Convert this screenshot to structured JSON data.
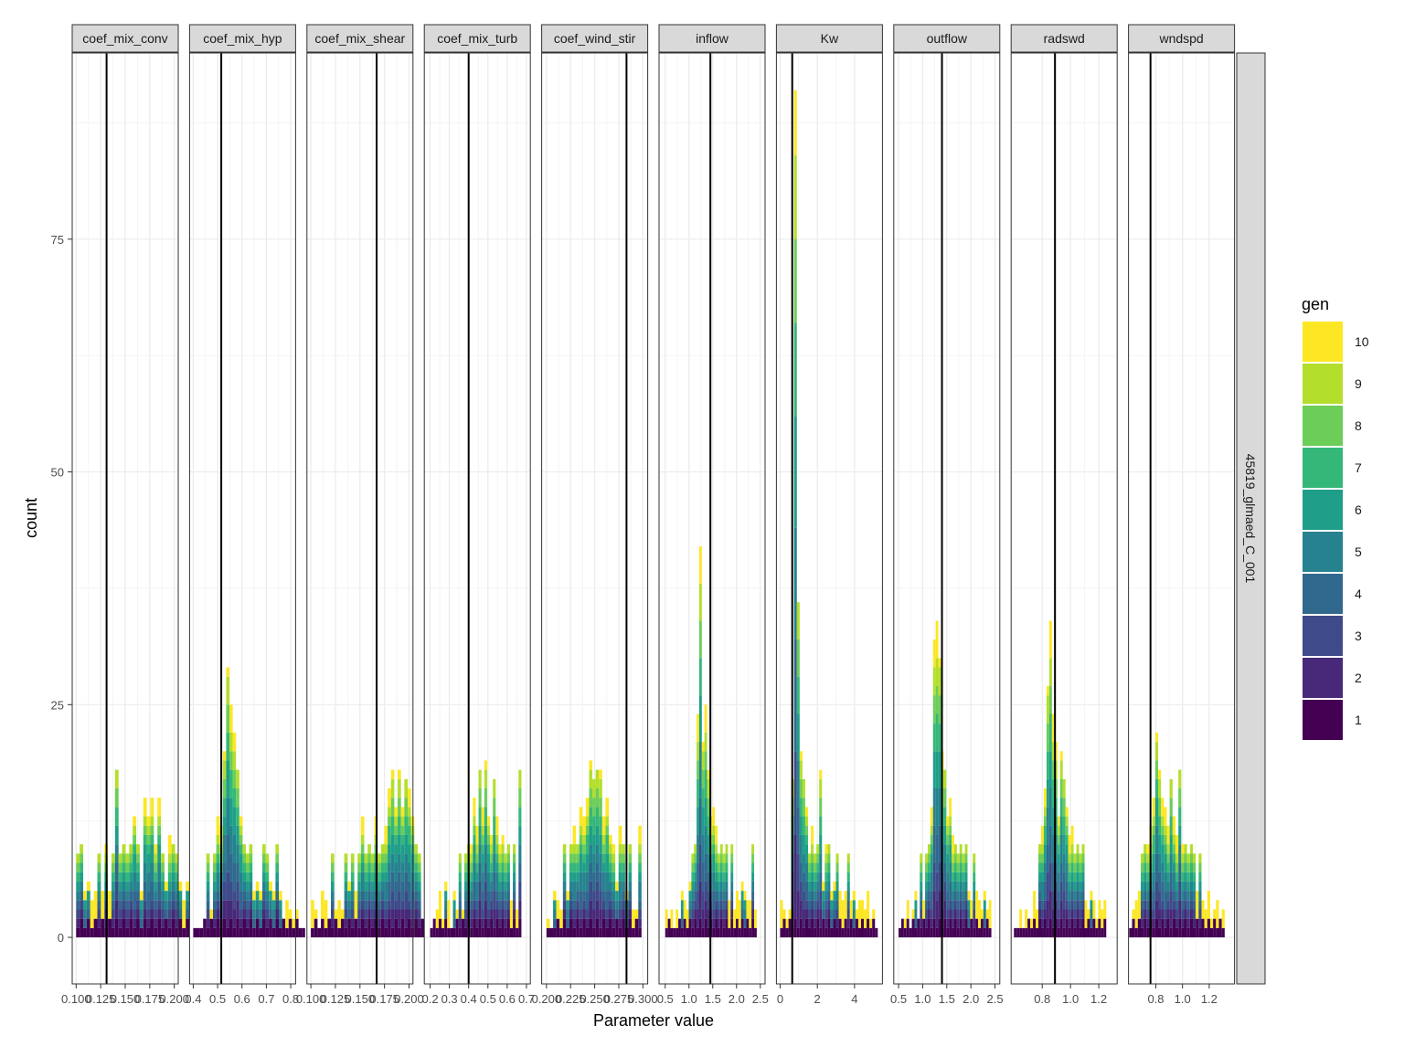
{
  "chart_data": {
    "type": "bar",
    "subtype": "stacked-histogram-facets",
    "xlabel": "Parameter value",
    "ylabel": "count",
    "ylim": [
      -5,
      95
    ],
    "y_ticks": [
      0,
      25,
      50,
      75
    ],
    "row_strip": "45819_glmaed_C_001",
    "legend": {
      "title": "gen",
      "placement": "right",
      "entries": [
        "10",
        "9",
        "8",
        "7",
        "6",
        "5",
        "4",
        "3",
        "2",
        "1"
      ],
      "colors": [
        "#FDE725",
        "#B4DE2C",
        "#6DCD59",
        "#35B779",
        "#1F9E89",
        "#26828E",
        "#31688E",
        "#3E4A89",
        "#482878",
        "#440154"
      ]
    },
    "facets": [
      {
        "name": "coef_mix_conv",
        "xlim": [
          0.096,
          0.204
        ],
        "ticks": [
          0.1,
          0.125,
          0.15,
          0.175,
          0.2
        ],
        "tick_labels": [
          "0.100",
          "0.125",
          "0.150",
          "0.175",
          "0.200"
        ],
        "vline": 0.131,
        "bins": {
          "start": 0.1,
          "step": 0.0036,
          "heights": [
            9,
            8,
            5,
            6,
            4,
            5,
            6,
            5,
            10,
            5,
            8,
            18,
            8,
            10,
            9,
            8,
            13,
            10,
            5,
            15,
            13,
            15,
            10,
            15,
            7,
            6,
            11,
            7,
            7,
            6,
            4,
            6,
            4,
            8,
            3,
            1,
            4,
            2
          ]
        }
      },
      {
        "name": "coef_mix_hyp",
        "xlim": [
          0.385,
          0.82
        ],
        "ticks": [
          0.4,
          0.5,
          0.6,
          0.7,
          0.8
        ],
        "tick_labels": [
          "0.4",
          "0.5",
          "0.6",
          "0.7",
          "0.8"
        ],
        "vline": 0.515,
        "bins": {
          "start": 0.4,
          "step": 0.0135,
          "heights": [
            1,
            1,
            1,
            2,
            6,
            3,
            9,
            13,
            12,
            20,
            29,
            25,
            22,
            18,
            13,
            9,
            6,
            10,
            5,
            6,
            5,
            10,
            7,
            6,
            5,
            8,
            5,
            2,
            4,
            3,
            2,
            3,
            1,
            1
          ]
        }
      },
      {
        "name": "coef_mix_shear",
        "xlim": [
          0.096,
          0.204
        ],
        "ticks": [
          0.1,
          0.125,
          0.15,
          0.175,
          0.2
        ],
        "tick_labels": [
          "0.100",
          "0.125",
          "0.150",
          "0.175",
          "0.200"
        ],
        "vline": 0.167,
        "bins": {
          "start": 0.1,
          "step": 0.0034,
          "heights": [
            4,
            3,
            1,
            5,
            4,
            2,
            6,
            3,
            4,
            3,
            7,
            6,
            8,
            5,
            9,
            13,
            8,
            10,
            7,
            13,
            6,
            9,
            12,
            16,
            18,
            14,
            18,
            14,
            17,
            16,
            13,
            9,
            6,
            2,
            11
          ]
        }
      },
      {
        "name": "coef_mix_turb",
        "xlim": [
          0.17,
          0.72
        ],
        "ticks": [
          0.2,
          0.3,
          0.4,
          0.5,
          0.6,
          0.7
        ],
        "tick_labels": [
          "0.2",
          "0.3",
          "0.4",
          "0.5",
          "0.6",
          "0.7"
        ],
        "vline": 0.4,
        "bins": {
          "start": 0.2,
          "step": 0.0148,
          "heights": [
            1,
            2,
            3,
            5,
            2,
            6,
            4,
            1,
            5,
            3,
            6,
            3,
            8,
            7,
            10,
            15,
            12,
            17,
            14,
            19,
            13,
            11,
            17,
            13,
            10,
            11,
            6,
            9,
            4,
            7,
            3,
            18
          ]
        }
      },
      {
        "name": "coef_wind_stir",
        "xlim": [
          0.195,
          0.305
        ],
        "ticks": [
          0.2,
          0.225,
          0.25,
          0.275,
          0.3
        ],
        "tick_labels": [
          "0.200",
          "0.225",
          "0.250",
          "0.275",
          "0.300"
        ],
        "vline": 0.283,
        "bins": {
          "start": 0.2,
          "step": 0.0034,
          "heights": [
            2,
            1,
            5,
            4,
            3,
            8,
            5,
            10,
            12,
            9,
            14,
            13,
            15,
            19,
            16,
            17,
            18,
            13,
            15,
            11,
            10,
            6,
            12,
            9,
            5,
            8,
            3,
            3,
            12
          ]
        }
      },
      {
        "name": "inflow",
        "xlim": [
          0.37,
          2.6
        ],
        "ticks": [
          0.5,
          1.0,
          1.5,
          2.0,
          2.5
        ],
        "tick_labels": [
          "0.5",
          "1.0",
          "1.5",
          "2.0",
          "2.5"
        ],
        "vline": 1.45,
        "bins": {
          "start": 0.5,
          "step": 0.055,
          "heights": [
            3,
            2,
            3,
            1,
            3,
            2,
            5,
            4,
            3,
            6,
            8,
            10,
            24,
            42,
            21,
            25,
            18,
            13,
            14,
            12,
            8,
            9,
            6,
            7,
            4,
            7,
            3,
            5,
            4,
            6,
            5,
            4,
            4,
            8,
            3
          ]
        }
      },
      {
        "name": "Kw",
        "xlim": [
          -0.2,
          5.5
        ],
        "ticks": [
          0,
          2,
          4
        ],
        "tick_labels": [
          "0",
          "2",
          "4"
        ],
        "vline": 0.65,
        "bins": {
          "start": 0.0,
          "step": 0.15,
          "heights": [
            4,
            3,
            2,
            3,
            16,
            91,
            36,
            20,
            16,
            14,
            8,
            12,
            7,
            9,
            18,
            6,
            10,
            8,
            5,
            6,
            7,
            5,
            4,
            5,
            6,
            4,
            5,
            3,
            4,
            4,
            3,
            5,
            2,
            3,
            1
          ]
        }
      },
      {
        "name": "outflow",
        "xlim": [
          0.4,
          2.6
        ],
        "ticks": [
          0.5,
          1.0,
          1.5,
          2.0,
          2.5
        ],
        "tick_labels": [
          "0.5",
          "1.0",
          "1.5",
          "2.0",
          "2.5"
        ],
        "vline": 1.4,
        "bins": {
          "start": 0.5,
          "step": 0.055,
          "heights": [
            1,
            2,
            2,
            4,
            1,
            3,
            5,
            2,
            6,
            4,
            8,
            10,
            14,
            32,
            34,
            30,
            20,
            17,
            13,
            15,
            11,
            9,
            7,
            10,
            6,
            8,
            5,
            4,
            7,
            5,
            4,
            3,
            5,
            3,
            4
          ]
        }
      },
      {
        "name": "radswd",
        "xlim": [
          0.58,
          1.33
        ],
        "ticks": [
          0.8,
          1.0,
          1.2
        ],
        "tick_labels": [
          "0.8",
          "1.0",
          "1.2"
        ],
        "vline": 0.89,
        "bins": {
          "start": 0.6,
          "step": 0.0192,
          "heights": [
            1,
            1,
            3,
            1,
            3,
            2,
            2,
            5,
            3,
            8,
            12,
            16,
            27,
            34,
            24,
            21,
            13,
            20,
            16,
            14,
            11,
            12,
            9,
            7,
            6,
            8,
            4,
            3,
            5,
            4,
            2,
            4,
            3,
            4
          ]
        }
      },
      {
        "name": "wndspd",
        "xlim": [
          0.595,
          1.39
        ],
        "ticks": [
          0.8,
          1.0,
          1.2
        ],
        "tick_labels": [
          "0.8",
          "1.0",
          "1.2"
        ],
        "vline": 0.76,
        "bins": {
          "start": 0.6,
          "step": 0.0217,
          "heights": [
            1,
            3,
            4,
            5,
            6,
            8,
            10,
            12,
            15,
            22,
            18,
            15,
            14,
            12,
            16,
            13,
            11,
            18,
            10,
            9,
            7,
            9,
            8,
            5,
            6,
            4,
            3,
            5,
            2,
            3,
            4,
            2,
            3
          ]
        }
      }
    ]
  }
}
